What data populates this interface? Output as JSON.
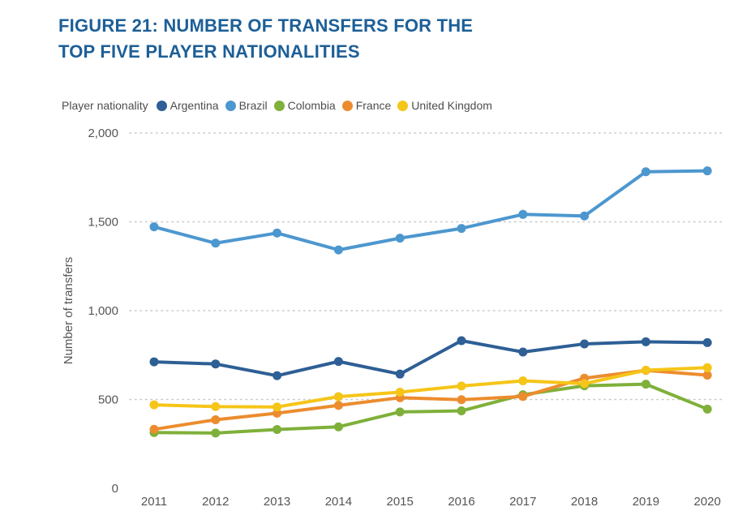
{
  "title": {
    "line1": "FIGURE 21: NUMBER OF TRANSFERS FOR THE",
    "line2": "TOP FIVE PLAYER NATIONALITIES"
  },
  "legend": {
    "title": "Player nationality"
  },
  "colors": {
    "title": "#1d5f97",
    "grid": "#c8c8c8",
    "text": "#555555"
  },
  "chart_data": {
    "type": "line",
    "title": "FIGURE 21: NUMBER OF TRANSFERS FOR THE TOP FIVE PLAYER NATIONALITIES",
    "xlabel": "",
    "ylabel": "Number of transfers",
    "categories": [
      "2011",
      "2012",
      "2013",
      "2014",
      "2015",
      "2016",
      "2017",
      "2018",
      "2019",
      "2020"
    ],
    "ylim": [
      0,
      2000
    ],
    "yticks": [
      0,
      500,
      1000,
      1500,
      2000
    ],
    "ytick_labels": [
      "0",
      "500",
      "1,000",
      "1,500",
      "2,000"
    ],
    "grid": true,
    "legend_position": "top-left",
    "series": [
      {
        "name": "Argentina",
        "color": "#2e5f95",
        "values": [
          712,
          700,
          634,
          714,
          643,
          831,
          767,
          813,
          825,
          820
        ]
      },
      {
        "name": "Brazil",
        "color": "#4d97cf",
        "values": [
          1472,
          1380,
          1437,
          1342,
          1408,
          1463,
          1542,
          1533,
          1782,
          1787
        ]
      },
      {
        "name": "Colombia",
        "color": "#7fb03a",
        "values": [
          314,
          311,
          331,
          346,
          430,
          436,
          527,
          577,
          586,
          446
        ]
      },
      {
        "name": "France",
        "color": "#ec8c2e",
        "values": [
          332,
          386,
          423,
          467,
          510,
          499,
          517,
          620,
          664,
          637
        ]
      },
      {
        "name": "United Kingdom",
        "color": "#f5c518",
        "values": [
          470,
          460,
          458,
          516,
          541,
          576,
          605,
          589,
          665,
          679
        ]
      }
    ]
  }
}
